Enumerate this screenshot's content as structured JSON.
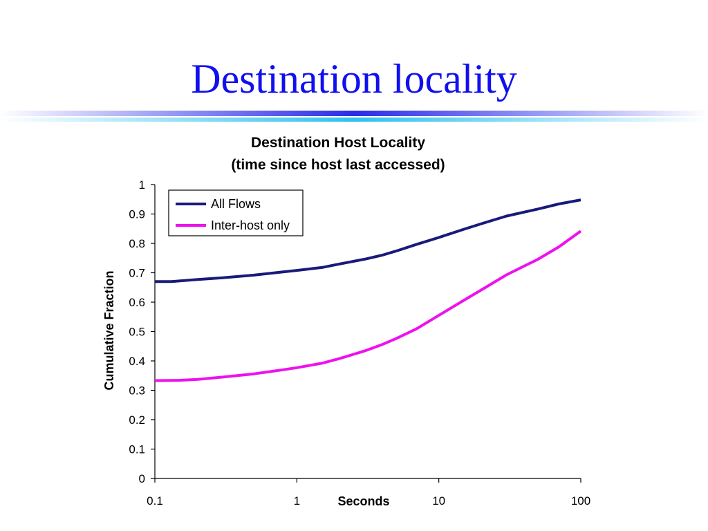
{
  "slide": {
    "title": "Destination locality"
  },
  "chart_data": {
    "type": "line",
    "title": "Destination Host Locality",
    "subtitle": "(time since host last accessed)",
    "xlabel": "Seconds",
    "ylabel": "Cumulative Fraction",
    "x_scale": "log",
    "xlim": [
      0.1,
      100
    ],
    "ylim": [
      0,
      1
    ],
    "x_ticks": [
      "0.1",
      "1",
      "10",
      "100"
    ],
    "y_ticks": [
      "0",
      "0.1",
      "0.2",
      "0.3",
      "0.4",
      "0.5",
      "0.6",
      "0.7",
      "0.8",
      "0.9",
      "1"
    ],
    "grid": false,
    "legend_position": "top-left",
    "series": [
      {
        "name": "All Flows",
        "color": "#1a1a7a",
        "x": [
          0.1,
          0.13,
          0.2,
          0.3,
          0.5,
          0.8,
          1,
          1.5,
          2,
          3,
          4,
          5,
          7,
          10,
          15,
          20,
          30,
          50,
          70,
          100
        ],
        "y": [
          0.67,
          0.67,
          0.677,
          0.683,
          0.692,
          0.703,
          0.708,
          0.718,
          0.73,
          0.746,
          0.76,
          0.774,
          0.797,
          0.82,
          0.848,
          0.867,
          0.893,
          0.917,
          0.934,
          0.948
        ]
      },
      {
        "name": "Inter-host only",
        "color": "#ee11ee",
        "x": [
          0.1,
          0.15,
          0.2,
          0.3,
          0.5,
          0.8,
          1,
          1.5,
          2,
          3,
          4,
          5,
          7,
          10,
          15,
          20,
          30,
          50,
          70,
          100
        ],
        "y": [
          0.333,
          0.334,
          0.337,
          0.345,
          0.356,
          0.37,
          0.377,
          0.392,
          0.408,
          0.434,
          0.456,
          0.476,
          0.51,
          0.555,
          0.606,
          0.642,
          0.693,
          0.746,
          0.788,
          0.842
        ]
      }
    ]
  }
}
